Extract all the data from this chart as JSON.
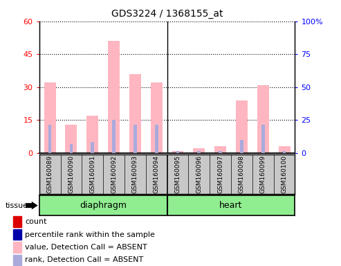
{
  "title": "GDS3224 / 1368155_at",
  "samples": [
    "GSM160089",
    "GSM160090",
    "GSM160091",
    "GSM160092",
    "GSM160093",
    "GSM160094",
    "GSM160095",
    "GSM160096",
    "GSM160097",
    "GSM160098",
    "GSM160099",
    "GSM160100"
  ],
  "value_absent": [
    32,
    13,
    17,
    51,
    36,
    32,
    1,
    2,
    3,
    24,
    31,
    3
  ],
  "rank_absent": [
    13,
    4,
    5,
    15,
    13,
    13,
    1,
    1,
    1,
    6,
    13,
    1
  ],
  "ylim_left": [
    0,
    60
  ],
  "ylim_right": [
    0,
    100
  ],
  "yticks_left": [
    0,
    15,
    30,
    45,
    60
  ],
  "yticks_right": [
    0,
    25,
    50,
    75,
    100
  ],
  "yticklabels_right": [
    "0",
    "25",
    "50",
    "75",
    "100%"
  ],
  "color_value_absent": "#FFB6C1",
  "color_rank_absent": "#AAAADD",
  "color_count": "#DD0000",
  "color_rank_present": "#0000AA",
  "diaphragm_color": "#AAFFAA",
  "heart_color": "#44DD44",
  "sample_bg_color": "#C8C8C8",
  "tissue_label": "tissue",
  "group_divider": 5,
  "legend_entries": [
    {
      "label": "count",
      "color": "#DD0000"
    },
    {
      "label": "percentile rank within the sample",
      "color": "#0000AA"
    },
    {
      "label": "value, Detection Call = ABSENT",
      "color": "#FFB6C1"
    },
    {
      "label": "rank, Detection Call = ABSENT",
      "color": "#AAAADD"
    }
  ]
}
